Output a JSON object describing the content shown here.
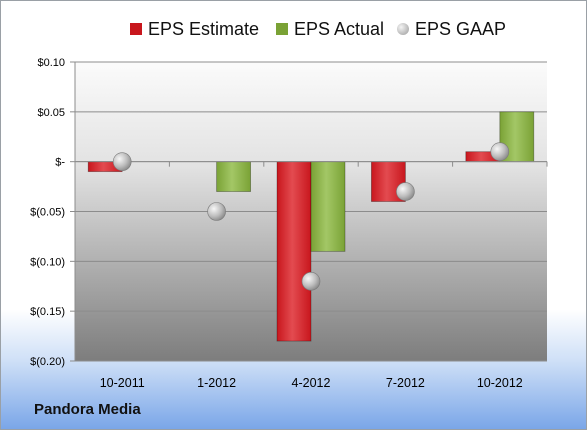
{
  "company_name": "Pandora Media",
  "colors": {
    "estimate": "#c8161d",
    "estimate_light": "#e34b50",
    "actual": "#7aa235",
    "actual_light": "#a3c766",
    "gaap": "#a8a8a8"
  },
  "chart_data": {
    "type": "bar",
    "categories": [
      "10-2011",
      "1-2012",
      "4-2012",
      "7-2012",
      "10-2012"
    ],
    "series": [
      {
        "name": "EPS Estimate",
        "values": [
          -0.01,
          0,
          -0.18,
          -0.04,
          0.01
        ]
      },
      {
        "name": "EPS Actual",
        "values": [
          0,
          -0.03,
          -0.09,
          0,
          0.05
        ]
      },
      {
        "name": "EPS GAAP",
        "type": "scatter",
        "values": [
          0.0,
          -0.05,
          -0.12,
          -0.03,
          0.01
        ]
      }
    ],
    "ylim": [
      -0.2,
      0.1
    ],
    "yticks": [
      {
        "value": 0.1,
        "label": "$0.10"
      },
      {
        "value": 0.05,
        "label": "$0.05"
      },
      {
        "value": 0,
        "label": "$-"
      },
      {
        "value": -0.05,
        "label": "$(0.05)"
      },
      {
        "value": -0.1,
        "label": "$(0.10)"
      },
      {
        "value": -0.15,
        "label": "$(0.15)"
      },
      {
        "value": -0.2,
        "label": "$(0.20)"
      }
    ],
    "grid": true,
    "legend": "top"
  }
}
